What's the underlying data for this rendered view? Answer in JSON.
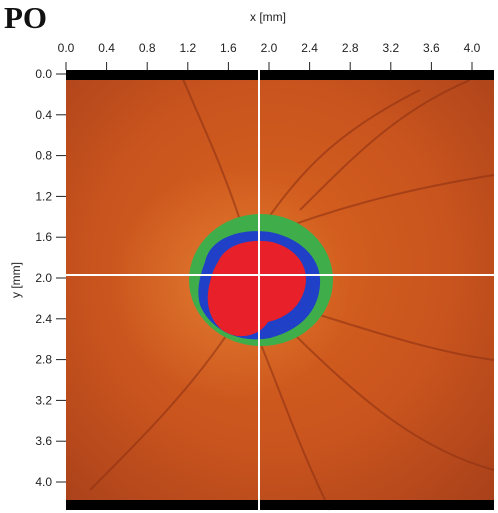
{
  "panel_label": "PO",
  "x_axis": {
    "title": "x [mm]",
    "tick_labels": [
      "0.0",
      "0.4",
      "0.8",
      "1.2",
      "1.6",
      "2.0",
      "2.4",
      "2.8",
      "3.2",
      "3.6",
      "4.0"
    ]
  },
  "y_axis": {
    "title": "y [mm]",
    "tick_labels": [
      "0.0",
      "0.4",
      "0.8",
      "1.2",
      "1.6",
      "2.0",
      "2.4",
      "2.8",
      "3.2",
      "3.6",
      "4.0"
    ]
  },
  "colors": {
    "fundus_background": "#c9541e",
    "disc_rim_region": "#3fae4a",
    "cup_boundary_region": "#2040c8",
    "cup_region": "#e8202a",
    "crosshair": "#ffffff",
    "border_band": "#000000"
  }
}
